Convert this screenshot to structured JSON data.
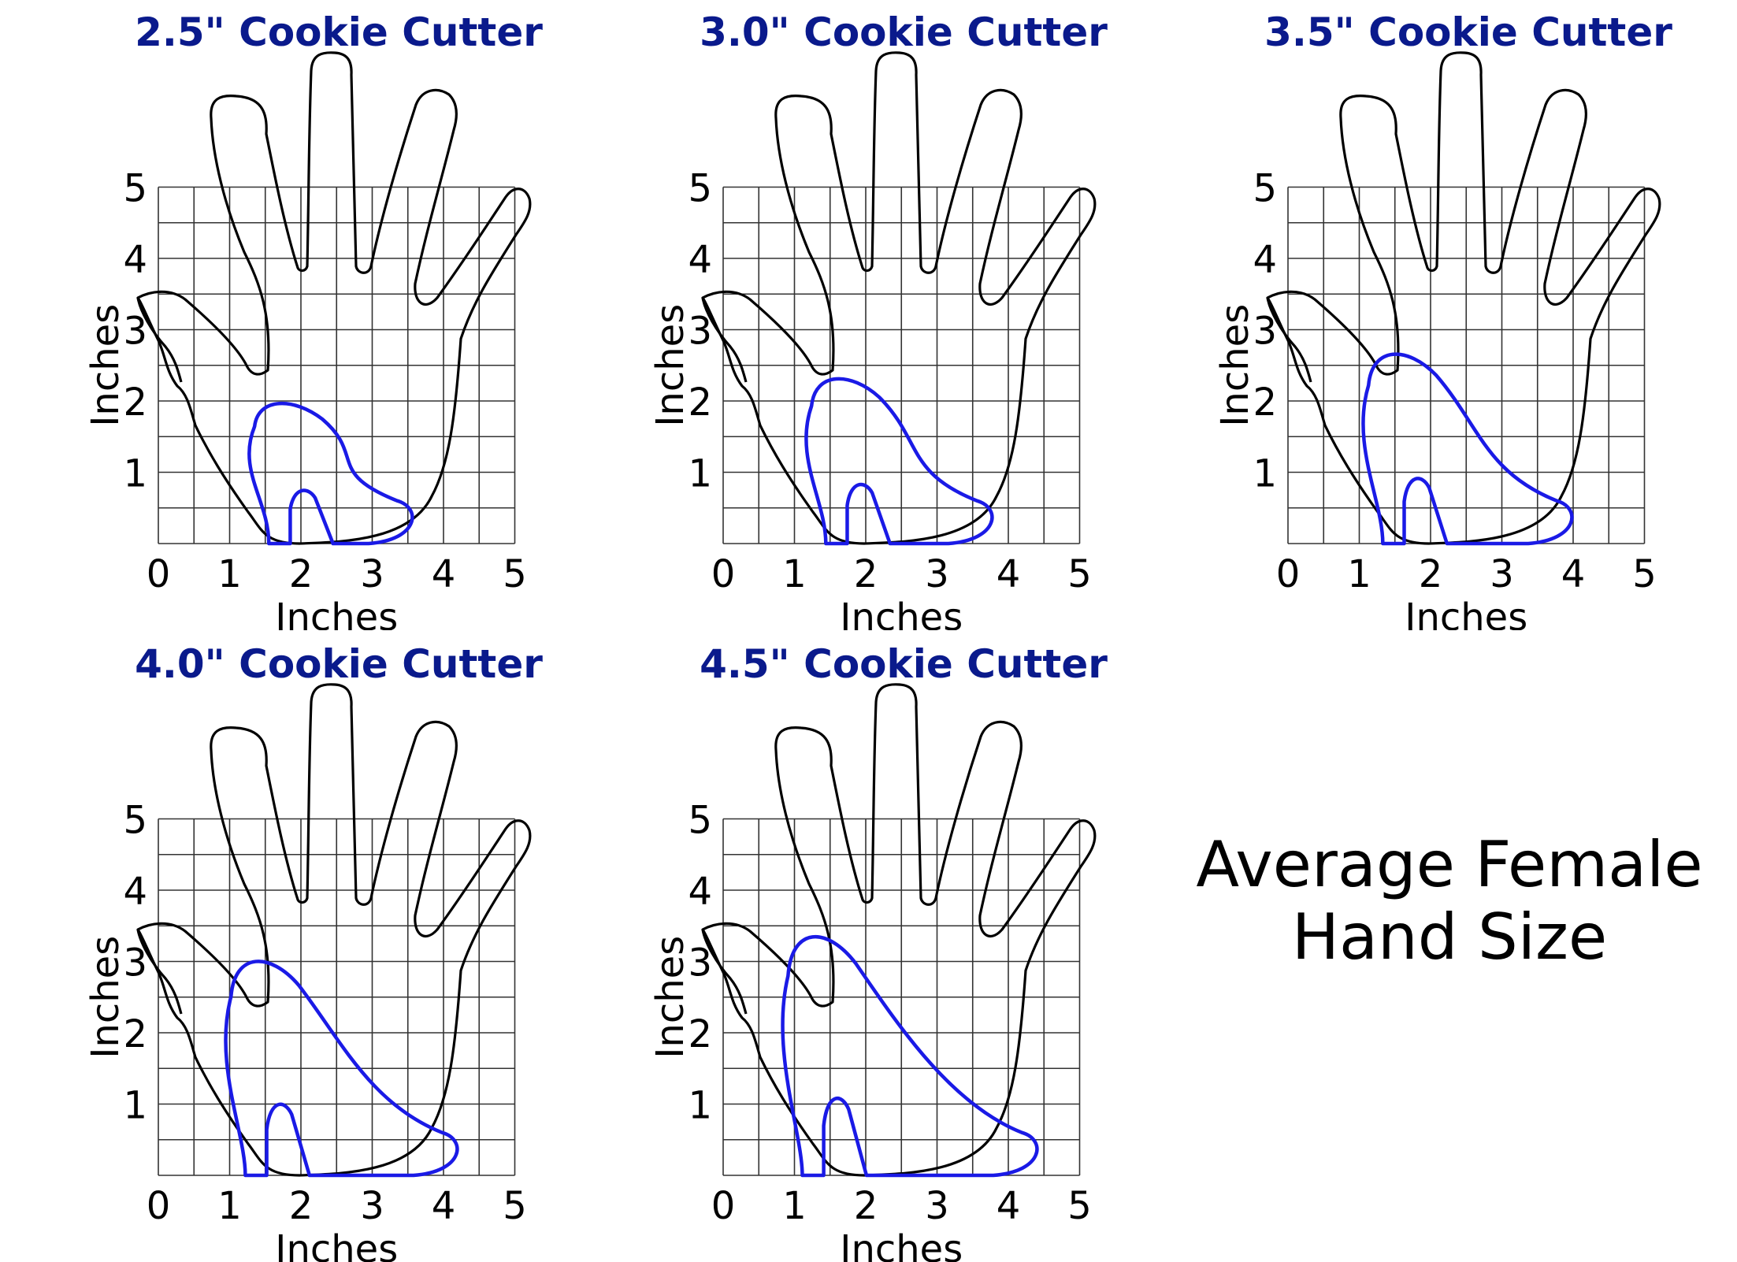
{
  "panels": [
    {
      "title": "2.5\" Cookie Cutter",
      "cutter_size_in": 2.5
    },
    {
      "title": "3.0\" Cookie Cutter",
      "cutter_size_in": 3.0
    },
    {
      "title": "3.5\" Cookie Cutter",
      "cutter_size_in": 3.5
    },
    {
      "title": "4.0\" Cookie Cutter",
      "cutter_size_in": 4.0
    },
    {
      "title": "4.5\" Cookie Cutter",
      "cutter_size_in": 4.5
    }
  ],
  "axis": {
    "x_label": "Inches",
    "y_label": "Inches",
    "x_ticks": [
      "0",
      "1",
      "2",
      "3",
      "4",
      "5"
    ],
    "y_ticks": [
      "1",
      "2",
      "3",
      "4",
      "5"
    ],
    "range_in": [
      0,
      5
    ],
    "grid_step_in": 0.5
  },
  "caption": {
    "line1": "Average Female",
    "line2": "Hand Size"
  },
  "colors": {
    "title": "#0a1a8c",
    "cutter": "#1a1ae6",
    "outline": "#000000",
    "grid": "#333333"
  }
}
